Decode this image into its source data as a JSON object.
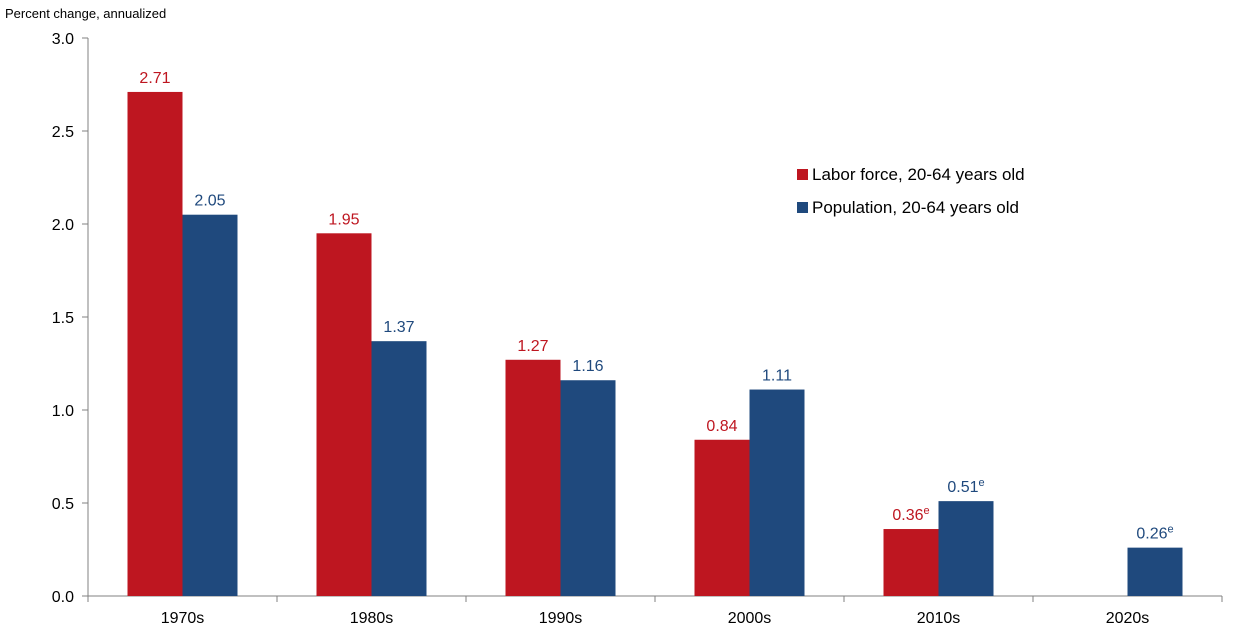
{
  "chart_data": {
    "type": "bar",
    "title": "",
    "xlabel": "",
    "ylabel": "Percent change, annualized",
    "ylim": [
      0,
      3.0
    ],
    "yticks": [
      "0.0",
      "0.5",
      "1.0",
      "1.5",
      "2.0",
      "2.5",
      "3.0"
    ],
    "categories": [
      "1970s",
      "1980s",
      "1990s",
      "2000s",
      "2010s",
      "2020s"
    ],
    "grid": false,
    "legend_position": "right",
    "series": [
      {
        "name": "Labor force, 20-64 years old",
        "color": "#be1620",
        "values": [
          2.71,
          1.95,
          1.27,
          0.84,
          0.36,
          null
        ],
        "labels": [
          "2.71",
          "1.95",
          "1.27",
          "0.84",
          "0.36",
          ""
        ],
        "superscripts": [
          "",
          "",
          "",
          "",
          "e",
          ""
        ]
      },
      {
        "name": "Population, 20-64 years old",
        "color": "#1f497d",
        "values": [
          2.05,
          1.37,
          1.16,
          1.11,
          0.51,
          0.26
        ],
        "labels": [
          "2.05",
          "1.37",
          "1.16",
          "1.11",
          "0.51",
          "0.26"
        ],
        "superscripts": [
          "",
          "",
          "",
          "",
          "e",
          "e"
        ]
      }
    ]
  }
}
